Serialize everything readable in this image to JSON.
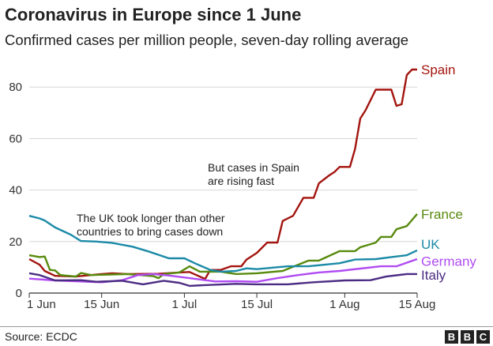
{
  "title": "Coronavirus in Europe since 1 June",
  "subtitle": "Confirmed cases per million people, seven-day rolling average",
  "source": "Source: ECDC",
  "logo": [
    "B",
    "B",
    "C"
  ],
  "chart_data": {
    "type": "line",
    "title": "Coronavirus in Europe since 1 June",
    "subtitle": "Confirmed cases per million people, seven-day rolling average",
    "xlim": [
      "Jun 1",
      "Aug 15"
    ],
    "ylim": [
      0,
      90
    ],
    "yticks": [
      0,
      20,
      40,
      60,
      80
    ],
    "xticks": [
      {
        "date": "Jun 1",
        "label": "1 Jun"
      },
      {
        "date": "Jun 15",
        "label": "15 Jun"
      },
      {
        "date": "Jul 1",
        "label": "1 Jul"
      },
      {
        "date": "Jul 15",
        "label": "15 Jul"
      },
      {
        "date": "Aug 1",
        "label": "1 Aug"
      },
      {
        "date": "Aug 15",
        "label": "15 Aug"
      }
    ],
    "grid": true,
    "legend": "direct labels at right end of lines",
    "annotations": [
      {
        "lines": [
          "But cases in Spain",
          "are rising fast"
        ]
      },
      {
        "lines": [
          "The UK took longer than other",
          "countries to bring cases down"
        ]
      }
    ],
    "series": [
      {
        "name": "Spain",
        "color": "#a3140f",
        "points": [
          [
            "Jun 1",
            13.2
          ],
          [
            "Jun 3",
            11
          ],
          [
            "Jun 4",
            8.6
          ],
          [
            "Jun 6",
            6.7
          ],
          [
            "Jun 10",
            6.4
          ],
          [
            "Jun 15",
            7.4
          ],
          [
            "Jun 17",
            7.7
          ],
          [
            "Jun 20",
            7.4
          ],
          [
            "Jun 26",
            7.5
          ],
          [
            "Jun 30",
            8
          ],
          [
            "Jul 2",
            8.2
          ],
          [
            "Jul 5",
            5.5
          ],
          [
            "Jul 6",
            9
          ],
          [
            "Jul 8",
            9
          ],
          [
            "Jul 10",
            10.4
          ],
          [
            "Jul 12",
            10.4
          ],
          [
            "Jul 13",
            13
          ],
          [
            "Jul 15",
            15.6
          ],
          [
            "Jul 17",
            19.6
          ],
          [
            "Jul 19",
            19.6
          ],
          [
            "Jul 20",
            28
          ],
          [
            "Jul 22",
            30
          ],
          [
            "Jul 24",
            37
          ],
          [
            "Jul 26",
            37
          ],
          [
            "Jul 27",
            42.6
          ],
          [
            "Jul 29",
            45.7
          ],
          [
            "Jul 30",
            47
          ],
          [
            "Jul 31",
            49
          ],
          [
            "Aug 2",
            49
          ],
          [
            "Aug 3",
            56
          ],
          [
            "Aug 4",
            67.8
          ],
          [
            "Aug 5",
            70.9
          ],
          [
            "Aug 7",
            79
          ],
          [
            "Aug 10",
            79
          ],
          [
            "Aug 11",
            72.7
          ],
          [
            "Aug 12",
            73.3
          ],
          [
            "Aug 13",
            84.7
          ],
          [
            "Aug 14",
            86.8
          ],
          [
            "Aug 15",
            86.8
          ]
        ]
      },
      {
        "name": "France",
        "color": "#588a0e",
        "points": [
          [
            "Jun 1",
            14.7
          ],
          [
            "Jun 3",
            14
          ],
          [
            "Jun 4",
            14.2
          ],
          [
            "Jun 5",
            9
          ],
          [
            "Jun 6",
            8.8
          ],
          [
            "Jun 7",
            7
          ],
          [
            "Jun 10",
            6.4
          ],
          [
            "Jun 11",
            7.8
          ],
          [
            "Jun 13",
            7
          ],
          [
            "Jun 20",
            7.4
          ],
          [
            "Jun 25",
            6.6
          ],
          [
            "Jun 26",
            5.8
          ],
          [
            "Jun 27",
            7.4
          ],
          [
            "Jun 30",
            8
          ],
          [
            "Jul 2",
            10.4
          ],
          [
            "Jul 4",
            8.3
          ],
          [
            "Jul 8",
            8.3
          ],
          [
            "Jul 11",
            7.4
          ],
          [
            "Jul 15",
            7.7
          ],
          [
            "Jul 20",
            8.6
          ],
          [
            "Jul 23",
            11
          ],
          [
            "Jul 25",
            12.6
          ],
          [
            "Jul 27",
            12.6
          ],
          [
            "Jul 31",
            16.3
          ],
          [
            "Aug 3",
            16.3
          ],
          [
            "Aug 4",
            17.8
          ],
          [
            "Aug 7",
            19.6
          ],
          [
            "Aug 8",
            21.8
          ],
          [
            "Aug 10",
            21.8
          ],
          [
            "Aug 11",
            24.8
          ],
          [
            "Aug 13",
            26
          ],
          [
            "Aug 15",
            30.7
          ]
        ]
      },
      {
        "name": "UK",
        "color": "#1b8aa7",
        "points": [
          [
            "Jun 1",
            30
          ],
          [
            "Jun 3",
            29
          ],
          [
            "Jun 4",
            28.2
          ],
          [
            "Jun 6",
            25.5
          ],
          [
            "Jun 9",
            22.7
          ],
          [
            "Jun 11",
            20.2
          ],
          [
            "Jun 14",
            20
          ],
          [
            "Jun 17",
            19.5
          ],
          [
            "Jun 21",
            18
          ],
          [
            "Jun 24",
            16.2
          ],
          [
            "Jun 28",
            13.5
          ],
          [
            "Jul 1",
            13.5
          ],
          [
            "Jul 3",
            11.6
          ],
          [
            "Jul 6",
            9
          ],
          [
            "Jul 8",
            8.3
          ],
          [
            "Jul 11",
            8.6
          ],
          [
            "Jul 13",
            9.6
          ],
          [
            "Jul 15",
            9.3
          ],
          [
            "Jul 21",
            10.4
          ],
          [
            "Jul 25",
            10.4
          ],
          [
            "Jul 31",
            11.6
          ],
          [
            "Aug 3",
            13
          ],
          [
            "Aug 7",
            13.2
          ],
          [
            "Aug 10",
            14
          ],
          [
            "Aug 13",
            14.7
          ],
          [
            "Aug 15",
            16.6
          ]
        ]
      },
      {
        "name": "Germany",
        "color": "#b04cf2",
        "points": [
          [
            "Jun 1",
            5.6
          ],
          [
            "Jun 6",
            4.9
          ],
          [
            "Jun 15",
            4.2
          ],
          [
            "Jun 19",
            5
          ],
          [
            "Jun 22",
            7
          ],
          [
            "Jun 25",
            7.4
          ],
          [
            "Jun 28",
            6.8
          ],
          [
            "Jul 2",
            5.8
          ],
          [
            "Jul 7",
            4.5
          ],
          [
            "Jul 11",
            4.6
          ],
          [
            "Jul 15",
            4.4
          ],
          [
            "Jul 19",
            5.8
          ],
          [
            "Jul 23",
            7
          ],
          [
            "Jul 27",
            8
          ],
          [
            "Jul 31",
            8.6
          ],
          [
            "Aug 4",
            9.5
          ],
          [
            "Aug 8",
            10.4
          ],
          [
            "Aug 11",
            10.4
          ],
          [
            "Aug 15",
            13.2
          ]
        ]
      },
      {
        "name": "Italy",
        "color": "#4b2c83",
        "points": [
          [
            "Jun 1",
            7.7
          ],
          [
            "Jun 3",
            7
          ],
          [
            "Jun 6",
            4.9
          ],
          [
            "Jun 11",
            5
          ],
          [
            "Jun 14",
            4.4
          ],
          [
            "Jun 19",
            4.8
          ],
          [
            "Jun 23",
            3.4
          ],
          [
            "Jun 27",
            4.8
          ],
          [
            "Jun 30",
            4
          ],
          [
            "Jul 2",
            2.8
          ],
          [
            "Jul 5",
            3.1
          ],
          [
            "Jul 11",
            3.6
          ],
          [
            "Jul 15",
            3.4
          ],
          [
            "Jul 21",
            3.4
          ],
          [
            "Jul 26",
            4.2
          ],
          [
            "Aug 1",
            4.9
          ],
          [
            "Aug 6",
            5
          ],
          [
            "Aug 9",
            6.4
          ],
          [
            "Aug 13",
            7.4
          ],
          [
            "Aug 15",
            7.4
          ]
        ]
      }
    ]
  }
}
